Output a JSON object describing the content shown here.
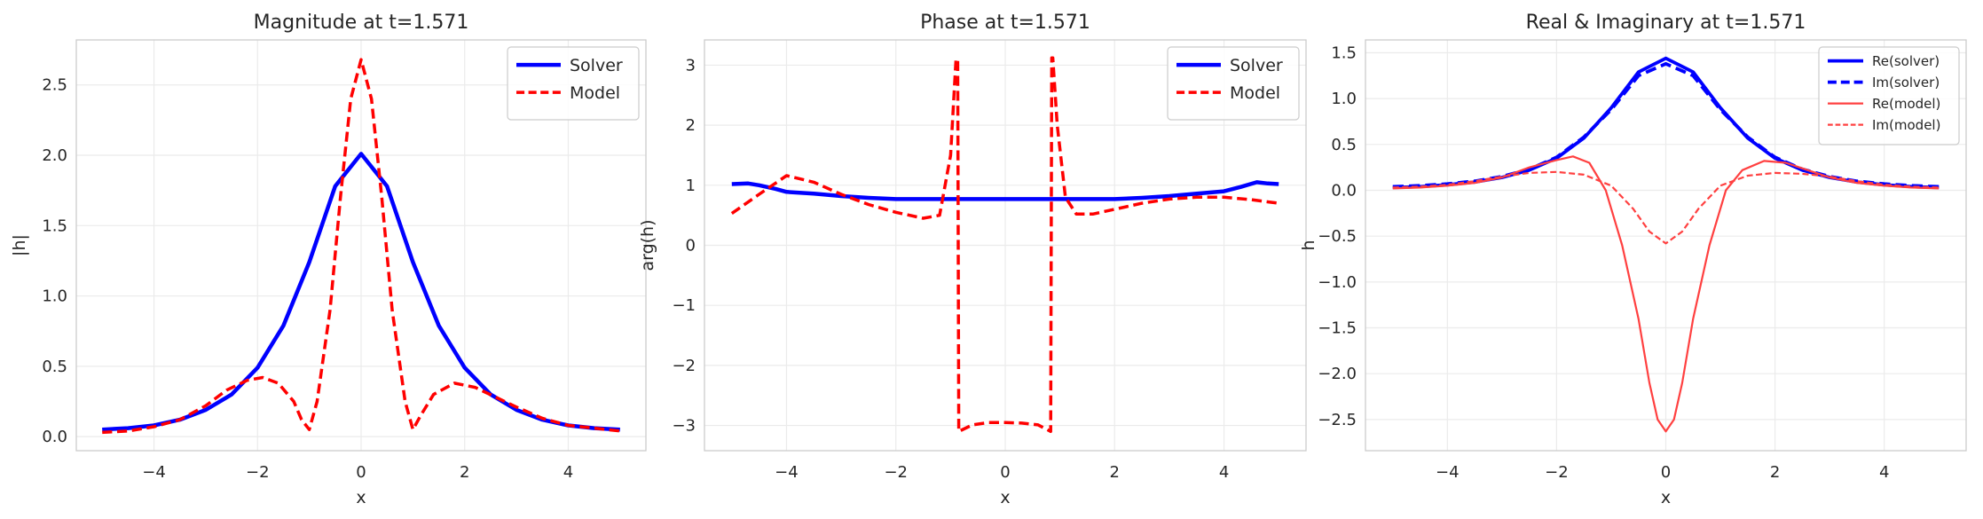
{
  "chart_data": [
    {
      "type": "line",
      "title": "Magnitude at t=1.571",
      "xlabel": "x",
      "ylabel": "|h|",
      "xlim": [
        -5.5,
        5.5
      ],
      "ylim": [
        -0.1,
        2.82
      ],
      "xticks": [
        -4,
        -2,
        0,
        2,
        4
      ],
      "yticks": [
        0.0,
        0.5,
        1.0,
        1.5,
        2.0,
        2.5
      ],
      "tick_decimals": 1,
      "grid": true,
      "legend_position": "top-right",
      "series": [
        {
          "name": "Solver",
          "color": "#0000ff",
          "dash": "solid",
          "width": 4.5,
          "x": [
            -5,
            -4.5,
            -4,
            -3.5,
            -3,
            -2.5,
            -2,
            -1.5,
            -1,
            -0.5,
            0,
            0.5,
            1,
            1.5,
            2,
            2.5,
            3,
            3.5,
            4,
            4.5,
            5
          ],
          "y": [
            0.05,
            0.06,
            0.08,
            0.12,
            0.19,
            0.3,
            0.49,
            0.79,
            1.24,
            1.78,
            2.01,
            1.78,
            1.24,
            0.79,
            0.49,
            0.3,
            0.19,
            0.12,
            0.08,
            0.06,
            0.05
          ]
        },
        {
          "name": "Model",
          "color": "#ff0000",
          "dash": "dashed",
          "width": 3.5,
          "x": [
            -5,
            -4.5,
            -4,
            -3.5,
            -3,
            -2.6,
            -2.2,
            -1.9,
            -1.6,
            -1.3,
            -1.15,
            -1.0,
            -0.85,
            -0.6,
            -0.4,
            -0.2,
            0,
            0.2,
            0.4,
            0.6,
            0.85,
            1.0,
            1.15,
            1.4,
            1.8,
            2.2,
            2.6,
            3,
            3.5,
            4,
            4.5,
            5
          ],
          "y": [
            0.03,
            0.04,
            0.07,
            0.12,
            0.22,
            0.33,
            0.4,
            0.42,
            0.38,
            0.25,
            0.12,
            0.05,
            0.25,
            0.9,
            1.7,
            2.4,
            2.68,
            2.4,
            1.7,
            0.9,
            0.25,
            0.05,
            0.15,
            0.3,
            0.38,
            0.35,
            0.28,
            0.21,
            0.13,
            0.08,
            0.06,
            0.04
          ]
        }
      ]
    },
    {
      "type": "line",
      "title": "Phase at t=1.571",
      "xlabel": "x",
      "ylabel": "arg(h)",
      "xlim": [
        -5.5,
        5.5
      ],
      "ylim": [
        -3.42,
        3.42
      ],
      "xticks": [
        -4,
        -2,
        0,
        2,
        4
      ],
      "yticks": [
        -3,
        -2,
        -1,
        0,
        1,
        2,
        3
      ],
      "tick_decimals": 0,
      "grid": true,
      "legend_position": "top-right",
      "series": [
        {
          "name": "Solver",
          "color": "#0000ff",
          "dash": "solid",
          "width": 4.5,
          "x": [
            -5,
            -4.7,
            -4.5,
            -4.2,
            -4,
            -3.5,
            -3,
            -2.5,
            -2,
            -1.5,
            -1,
            0,
            1,
            1.5,
            2,
            2.5,
            3,
            3.5,
            4,
            4.3,
            4.6,
            4.8,
            5
          ],
          "y": [
            1.02,
            1.03,
            1.0,
            0.94,
            0.89,
            0.86,
            0.82,
            0.79,
            0.77,
            0.77,
            0.77,
            0.77,
            0.77,
            0.77,
            0.77,
            0.79,
            0.82,
            0.86,
            0.9,
            0.97,
            1.05,
            1.03,
            1.02
          ]
        },
        {
          "name": "Model",
          "color": "#ff0000",
          "dash": "dashed",
          "width": 3.5,
          "x": [
            -5,
            -4.5,
            -4,
            -3.5,
            -3,
            -2.5,
            -2,
            -1.5,
            -1.2,
            -1.0,
            -0.9,
            -0.87,
            -0.85,
            -0.6,
            -0.3,
            0,
            0.3,
            0.6,
            0.83,
            0.85,
            0.87,
            0.95,
            1.1,
            1.3,
            1.6,
            2,
            2.5,
            3,
            3.5,
            4,
            4.5,
            5
          ],
          "y": [
            0.53,
            0.85,
            1.16,
            1.05,
            0.85,
            0.68,
            0.55,
            0.45,
            0.5,
            1.5,
            3.1,
            3.1,
            -3.1,
            -2.99,
            -2.95,
            -2.95,
            -2.96,
            -2.99,
            -3.1,
            3.12,
            3.12,
            2.0,
            0.8,
            0.52,
            0.52,
            0.6,
            0.7,
            0.77,
            0.8,
            0.8,
            0.76,
            0.7
          ]
        }
      ]
    },
    {
      "type": "line",
      "title": "Real & Imaginary at t=1.571",
      "xlabel": "x",
      "ylabel": "h",
      "xlim": [
        -5.5,
        5.5
      ],
      "ylim": [
        -2.84,
        1.64
      ],
      "xticks": [
        -4,
        -2,
        0,
        2,
        4
      ],
      "yticks": [
        -2.5,
        -2.0,
        -1.5,
        -1.0,
        -0.5,
        0.0,
        0.5,
        1.0,
        1.5
      ],
      "tick_decimals": 1,
      "grid": true,
      "legend_position": "top-right",
      "series": [
        {
          "name": "Re(solver)",
          "color": "#0000ff",
          "dash": "solid",
          "width": 3.8,
          "x": [
            -5,
            -4.5,
            -4,
            -3.5,
            -3,
            -2.5,
            -2,
            -1.5,
            -1,
            -0.5,
            0,
            0.5,
            1,
            1.5,
            2,
            2.5,
            3,
            3.5,
            4,
            4.5,
            5
          ],
          "y": [
            0.03,
            0.04,
            0.06,
            0.09,
            0.14,
            0.22,
            0.35,
            0.57,
            0.9,
            1.29,
            1.44,
            1.29,
            0.9,
            0.57,
            0.35,
            0.22,
            0.14,
            0.09,
            0.06,
            0.04,
            0.03
          ]
        },
        {
          "name": "Im(solver)",
          "color": "#0000ff",
          "dash": "dashed",
          "width": 3.8,
          "x": [
            -5,
            -4.5,
            -4,
            -3.5,
            -3,
            -2.5,
            -2,
            -1.5,
            -1,
            -0.5,
            0,
            0.5,
            1,
            1.5,
            2,
            2.5,
            3,
            3.5,
            4,
            4.5,
            5
          ],
          "y": [
            0.04,
            0.05,
            0.07,
            0.1,
            0.15,
            0.23,
            0.36,
            0.58,
            0.88,
            1.25,
            1.38,
            1.25,
            0.88,
            0.58,
            0.36,
            0.23,
            0.15,
            0.1,
            0.07,
            0.05,
            0.04
          ]
        },
        {
          "name": "Re(model)",
          "color": "#ff4040",
          "dash": "solid",
          "width": 2.2,
          "x": [
            -5,
            -4.5,
            -4,
            -3.5,
            -3,
            -2.5,
            -2,
            -1.7,
            -1.4,
            -1.1,
            -0.8,
            -0.5,
            -0.3,
            -0.15,
            0,
            0.15,
            0.3,
            0.5,
            0.8,
            1.1,
            1.4,
            1.8,
            2.2,
            2.6,
            3,
            3.5,
            4,
            4.5,
            5
          ],
          "y": [
            0.02,
            0.03,
            0.05,
            0.08,
            0.14,
            0.25,
            0.33,
            0.37,
            0.3,
            0.0,
            -0.6,
            -1.4,
            -2.1,
            -2.5,
            -2.63,
            -2.5,
            -2.1,
            -1.4,
            -0.6,
            0.0,
            0.22,
            0.32,
            0.3,
            0.22,
            0.14,
            0.08,
            0.05,
            0.03,
            0.02
          ]
        },
        {
          "name": "Im(model)",
          "color": "#ff4040",
          "dash": "dashed",
          "width": 2.2,
          "x": [
            -5,
            -4.5,
            -4,
            -3.5,
            -3,
            -2.5,
            -2,
            -1.5,
            -1,
            -0.6,
            -0.3,
            0,
            0.3,
            0.6,
            1,
            1.5,
            2,
            2.5,
            3,
            3.5,
            4,
            4.5,
            5
          ],
          "y": [
            0.03,
            0.04,
            0.06,
            0.1,
            0.15,
            0.19,
            0.2,
            0.17,
            0.05,
            -0.2,
            -0.45,
            -0.58,
            -0.45,
            -0.2,
            0.05,
            0.16,
            0.19,
            0.18,
            0.15,
            0.1,
            0.06,
            0.04,
            0.03
          ]
        }
      ]
    }
  ]
}
